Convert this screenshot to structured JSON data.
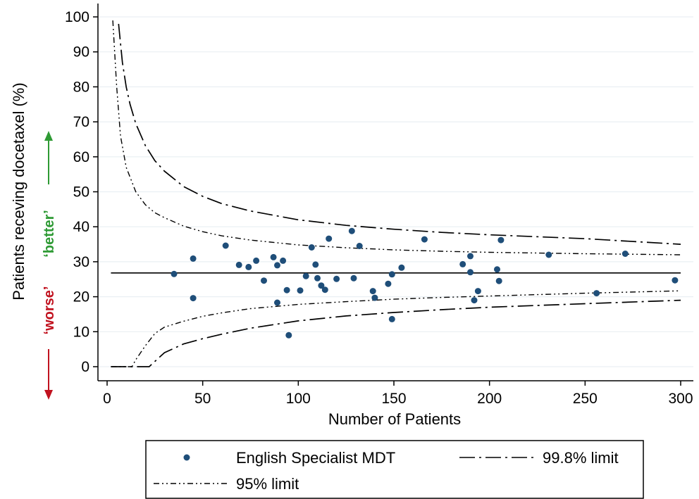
{
  "chart_data": {
    "type": "scatter",
    "xlabel": "Number of Patients",
    "ylabel": "Patients receving docetaxel (%)",
    "xlim": [
      0,
      300
    ],
    "ylim": [
      0,
      100
    ],
    "xticks": [
      "0",
      "50",
      "100",
      "150",
      "200",
      "250",
      "300"
    ],
    "yticks": [
      "0",
      "10",
      "20",
      "30",
      "40",
      "50",
      "60",
      "70",
      "80",
      "90",
      "100"
    ],
    "grid": "horizontal",
    "mean": 26.8,
    "better_label": "‘better’",
    "worse_label": "‘worse’",
    "better_color": "#2e9a34",
    "worse_color": "#c1121f",
    "point_color": "#1f4e79",
    "series": [
      {
        "name": "English Specialist MDT",
        "points": [
          [
            35,
            26.5
          ],
          [
            45,
            30.9
          ],
          [
            45,
            19.6
          ],
          [
            62,
            34.6
          ],
          [
            69,
            29.1
          ],
          [
            74,
            28.5
          ],
          [
            78,
            30.3
          ],
          [
            82,
            24.6
          ],
          [
            87,
            31.3
          ],
          [
            89,
            29.0
          ],
          [
            89,
            18.3
          ],
          [
            92,
            30.3
          ],
          [
            94,
            21.9
          ],
          [
            95,
            9.0
          ],
          [
            101,
            21.8
          ],
          [
            104,
            25.9
          ],
          [
            107,
            34.1
          ],
          [
            109,
            29.2
          ],
          [
            110,
            25.3
          ],
          [
            112,
            23.2
          ],
          [
            114,
            22.0
          ],
          [
            116,
            36.6
          ],
          [
            120,
            25.1
          ],
          [
            128,
            38.8
          ],
          [
            129,
            25.3
          ],
          [
            132,
            34.5
          ],
          [
            139,
            21.6
          ],
          [
            140,
            19.7
          ],
          [
            147,
            23.7
          ],
          [
            149,
            26.4
          ],
          [
            149,
            13.6
          ],
          [
            154,
            28.3
          ],
          [
            166,
            36.4
          ],
          [
            186,
            29.3
          ],
          [
            190,
            31.6
          ],
          [
            190,
            27.0
          ],
          [
            192,
            19.0
          ],
          [
            194,
            21.6
          ],
          [
            204,
            27.8
          ],
          [
            205,
            24.5
          ],
          [
            206,
            36.2
          ],
          [
            231,
            32.0
          ],
          [
            256,
            21.0
          ],
          [
            271,
            32.3
          ],
          [
            297,
            24.7
          ]
        ]
      },
      {
        "name": "99.8% limit",
        "upper": [
          [
            6,
            98
          ],
          [
            8,
            87
          ],
          [
            10,
            80
          ],
          [
            12,
            75
          ],
          [
            15,
            69.5
          ],
          [
            20,
            63.2
          ],
          [
            25,
            58.9
          ],
          [
            30,
            55.9
          ],
          [
            40,
            51.5
          ],
          [
            50,
            48.7
          ],
          [
            60,
            46.6
          ],
          [
            75,
            44.5
          ],
          [
            100,
            42.0
          ],
          [
            125,
            40.4
          ],
          [
            150,
            39.3
          ],
          [
            175,
            38.4
          ],
          [
            200,
            37.7
          ],
          [
            250,
            36.6
          ],
          [
            300,
            35.0
          ]
        ],
        "lower": [
          [
            2,
            0
          ],
          [
            22,
            0
          ],
          [
            25,
            1.5
          ],
          [
            30,
            4
          ],
          [
            40,
            6.5
          ],
          [
            50,
            8.0
          ],
          [
            60,
            9.3
          ],
          [
            75,
            11.0
          ],
          [
            100,
            13.1
          ],
          [
            125,
            14.5
          ],
          [
            150,
            15.5
          ],
          [
            175,
            16.3
          ],
          [
            200,
            17.0
          ],
          [
            250,
            18.0
          ],
          [
            300,
            19.0
          ]
        ]
      },
      {
        "name": "95% limit",
        "upper": [
          [
            3,
            99
          ],
          [
            5,
            80
          ],
          [
            7,
            66
          ],
          [
            10,
            57
          ],
          [
            15,
            50
          ],
          [
            20,
            46.3
          ],
          [
            25,
            44.0
          ],
          [
            30,
            42.6
          ],
          [
            40,
            40.2
          ],
          [
            50,
            38.6
          ],
          [
            60,
            37.4
          ],
          [
            75,
            36.2
          ],
          [
            100,
            34.8
          ],
          [
            125,
            34.0
          ],
          [
            150,
            33.4
          ],
          [
            175,
            33.0
          ],
          [
            200,
            32.7
          ],
          [
            250,
            32.3
          ],
          [
            300,
            32.0
          ]
        ],
        "lower": [
          [
            2,
            0
          ],
          [
            13,
            0
          ],
          [
            15,
            2
          ],
          [
            20,
            6
          ],
          [
            25,
            9.5
          ],
          [
            30,
            11.3
          ],
          [
            40,
            13.0
          ],
          [
            50,
            14.4
          ],
          [
            60,
            15.4
          ],
          [
            75,
            16.6
          ],
          [
            100,
            17.8
          ],
          [
            125,
            18.6
          ],
          [
            150,
            19.3
          ],
          [
            175,
            19.8
          ],
          [
            200,
            20.2
          ],
          [
            250,
            21.0
          ],
          [
            300,
            21.7
          ]
        ]
      }
    ],
    "legend": {
      "placement": "bottom",
      "items": [
        "English Specialist MDT",
        "99.8% limit",
        "95% limit"
      ]
    }
  }
}
